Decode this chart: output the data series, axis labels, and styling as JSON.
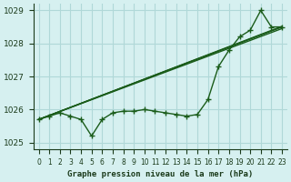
{
  "title": "Graphe pression niveau de la mer (hPa)",
  "background_color": "#d6f0f0",
  "grid_color": "#b0d8d8",
  "line_color": "#1a5c1a",
  "x_labels": [
    "0",
    "1",
    "2",
    "3",
    "4",
    "5",
    "6",
    "7",
    "8",
    "9",
    "10",
    "11",
    "12",
    "13",
    "14",
    "15",
    "16",
    "17",
    "18",
    "19",
    "20",
    "21",
    "22",
    "23"
  ],
  "hours": [
    0,
    1,
    2,
    3,
    4,
    5,
    6,
    7,
    8,
    9,
    10,
    11,
    12,
    13,
    14,
    15,
    16,
    17,
    18,
    19,
    20,
    21,
    22,
    23
  ],
  "pressure": [
    1025.7,
    1025.8,
    1025.9,
    1025.8,
    1025.7,
    1025.2,
    1025.7,
    1025.9,
    1025.95,
    1025.95,
    1026.0,
    1025.95,
    1025.9,
    1025.85,
    1025.8,
    1025.85,
    1026.3,
    1027.3,
    1027.8,
    1028.2,
    1028.4,
    1029.0,
    1028.5,
    1028.5
  ],
  "ylim": [
    1024.8,
    1029.2
  ],
  "yticks": [
    1025,
    1026,
    1027,
    1028,
    1029
  ],
  "xlim": [
    -0.5,
    23.5
  ]
}
